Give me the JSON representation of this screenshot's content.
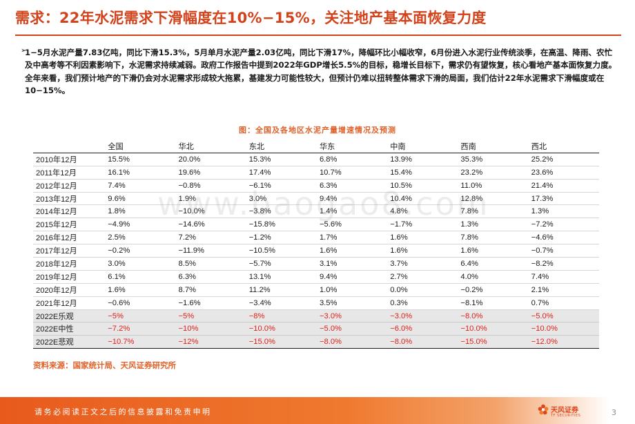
{
  "title": "需求：22年水泥需求下滑幅度在10%−15%，关注地产基本面恢复力度",
  "bullet_marker": "➢",
  "bullet_text": "1−5月水泥产量7.83亿吨，同比下滑15.3%，5月单月水泥产量2.03亿吨，同比下滑17%，降幅环比小幅收窄，6月份进入水泥行业传统淡季，在高温、降雨、农忙及中高考等不利因素影响下，水泥需求持续减弱。政府工作报告中提到2022年GDP增长5.5%的目标，稳增长目标下，需求仍有望恢复，核心看地产基本面恢复力度。全年来看，我们预计地产的下滑仍会对水泥需求形成较大拖累，基建发力可能性较大，但预计仍难以扭转整体需求下滑的局面，我们估计22年水泥需求下滑幅度或在10−15%。",
  "figure_title": "图：全国及各地区水泥产量增速情况及预测",
  "table": {
    "headers": [
      "",
      "全国",
      "华北",
      "东北",
      "华东",
      "中南",
      "西南",
      "西北"
    ],
    "rows": [
      [
        "2010年12月",
        "15.5%",
        "20.0%",
        "15.3%",
        "6.8%",
        "13.9%",
        "35.3%",
        "25.2%"
      ],
      [
        "2011年12月",
        "16.1%",
        "19.6%",
        "17.4%",
        "10.7%",
        "15.4%",
        "23.2%",
        "23.6%"
      ],
      [
        "2012年12月",
        "7.4%",
        "−0.8%",
        "−6.1%",
        "6.3%",
        "10.5%",
        "11.0%",
        "21.4%"
      ],
      [
        "2013年12月",
        "9.6%",
        "1.9%",
        "3.0%",
        "9.4%",
        "10.4%",
        "12.8%",
        "17.3%"
      ],
      [
        "2014年12月",
        "1.8%",
        "−10.0%",
        "−3.8%",
        "1.4%",
        "4.8%",
        "7.8%",
        "1.3%"
      ],
      [
        "2015年12月",
        "−4.9%",
        "−14.6%",
        "−15.8%",
        "−5.6%",
        "−1.7%",
        "1.3%",
        "−7.2%"
      ],
      [
        "2016年12月",
        "2.5%",
        "7.2%",
        "−1.2%",
        "1.7%",
        "1.6%",
        "7.8%",
        "−4.6%"
      ],
      [
        "2017年12月",
        "−0.2%",
        "−11.9%",
        "−10.5%",
        "1.6%",
        "1.6%",
        "1.6%",
        "−0.7%"
      ],
      [
        "2018年12月",
        "3.0%",
        "8.5%",
        "−5.7%",
        "3.1%",
        "3.7%",
        "6.4%",
        "−8.2%"
      ],
      [
        "2019年12月",
        "6.1%",
        "6.3%",
        "13.1%",
        "9.4%",
        "2.7%",
        "4.0%",
        "7.4%"
      ],
      [
        "2020年12月",
        "1.6%",
        "8.7%",
        "11.2%",
        "1.0%",
        "0.0%",
        "−0.2%",
        "2.1%"
      ],
      [
        "2021年12月",
        "−0.6%",
        "−1.6%",
        "−3.4%",
        "3.5%",
        "0.3%",
        "−8.1%",
        "0.7%"
      ]
    ],
    "scenario_rows": [
      [
        "2022E乐观",
        "−5%",
        "−5%",
        "−8%",
        "−3.0%",
        "−3.0%",
        "−8.0%",
        "−5.0%"
      ],
      [
        "2022E中性",
        "−7.2%",
        "−10%",
        "−10.0%",
        "−5.0%",
        "−6.0%",
        "−10.0%",
        "−10.0%"
      ],
      [
        "2022E悲观",
        "−10.7%",
        "−12%",
        "−15.0%",
        "−8.0%",
        "−8.0%",
        "−15.0%",
        "−12.0%"
      ]
    ]
  },
  "source": "资料来源：国家统计局、天风证券研究所",
  "watermark": "www.baogao8.com",
  "footer_disclaimer": "请务必阅读正文之后的信息披露和免责申明",
  "logo_name": "天风证券",
  "logo_sub": "TF SECURITIES",
  "page_number": "3",
  "colors": {
    "title": "#d2421b",
    "accent": "#e0622a",
    "scenario_value": "#e0201a",
    "scenario_bg": "#e7e7e7",
    "footer": "#e85a1c"
  }
}
